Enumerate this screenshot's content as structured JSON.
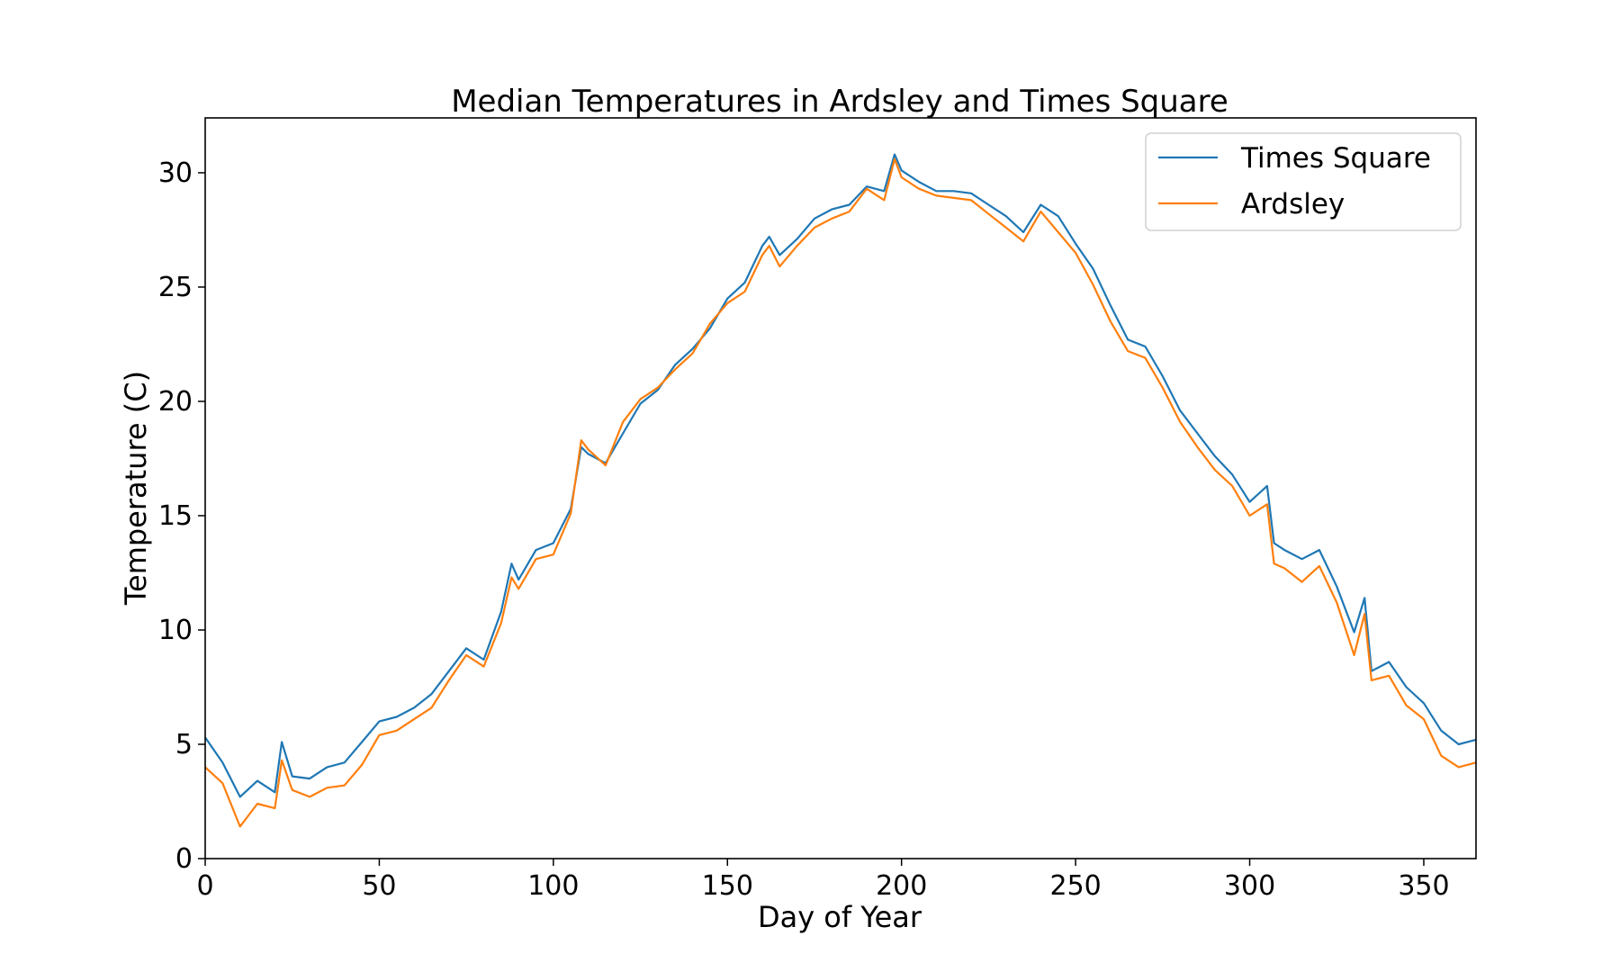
{
  "chart_data": {
    "type": "line",
    "title": "Median Temperatures in Ardsley and Times Square",
    "xlabel": "Day of Year",
    "ylabel": "Temperature (C)",
    "xlim": [
      0,
      365
    ],
    "ylim": [
      0,
      32.4
    ],
    "xticks": [
      0,
      50,
      100,
      150,
      200,
      250,
      300,
      350
    ],
    "yticks": [
      0,
      5,
      10,
      15,
      20,
      25,
      30
    ],
    "grid": false,
    "legend_position": "top-right",
    "series": [
      {
        "name": "Times Square",
        "color": "#1f77b4",
        "x": [
          0,
          5,
          10,
          15,
          20,
          22,
          25,
          30,
          35,
          40,
          45,
          50,
          55,
          60,
          65,
          70,
          75,
          80,
          85,
          88,
          90,
          95,
          100,
          105,
          108,
          110,
          115,
          120,
          125,
          130,
          135,
          140,
          145,
          150,
          155,
          160,
          162,
          165,
          170,
          175,
          180,
          185,
          190,
          195,
          198,
          200,
          205,
          210,
          215,
          220,
          225,
          230,
          235,
          240,
          245,
          250,
          255,
          260,
          265,
          270,
          275,
          280,
          285,
          290,
          295,
          300,
          305,
          307,
          310,
          315,
          320,
          325,
          330,
          333,
          335,
          340,
          345,
          350,
          355,
          360,
          365
        ],
        "y": [
          5.3,
          4.2,
          2.7,
          3.4,
          2.9,
          5.1,
          3.6,
          3.5,
          4.0,
          4.2,
          5.1,
          6.0,
          6.2,
          6.6,
          7.2,
          8.2,
          9.2,
          8.7,
          10.8,
          12.9,
          12.2,
          13.5,
          13.8,
          15.3,
          18.0,
          17.7,
          17.3,
          18.6,
          19.9,
          20.5,
          21.6,
          22.3,
          23.2,
          24.5,
          25.2,
          26.8,
          27.2,
          26.4,
          27.1,
          28.0,
          28.4,
          28.6,
          29.4,
          29.2,
          30.8,
          30.1,
          29.6,
          29.2,
          29.2,
          29.1,
          28.6,
          28.1,
          27.4,
          28.6,
          28.1,
          26.9,
          25.8,
          24.2,
          22.7,
          22.4,
          21.1,
          19.6,
          18.6,
          17.6,
          16.8,
          15.6,
          16.3,
          13.8,
          13.5,
          13.1,
          13.5,
          11.9,
          9.9,
          11.4,
          8.2,
          8.6,
          7.5,
          6.8,
          5.6,
          5.0,
          5.2
        ]
      },
      {
        "name": "Ardsley",
        "color": "#ff7f0e",
        "x": [
          0,
          5,
          10,
          15,
          20,
          22,
          25,
          30,
          35,
          40,
          45,
          50,
          55,
          60,
          65,
          70,
          75,
          80,
          85,
          88,
          90,
          95,
          100,
          105,
          108,
          110,
          115,
          120,
          125,
          130,
          135,
          140,
          145,
          150,
          155,
          160,
          162,
          165,
          170,
          175,
          180,
          185,
          190,
          195,
          198,
          200,
          205,
          210,
          215,
          220,
          225,
          230,
          235,
          240,
          245,
          250,
          255,
          260,
          265,
          270,
          275,
          280,
          285,
          290,
          295,
          300,
          305,
          307,
          310,
          315,
          320,
          325,
          330,
          333,
          335,
          340,
          345,
          350,
          355,
          360,
          365
        ],
        "y": [
          4.0,
          3.3,
          1.4,
          2.4,
          2.2,
          4.3,
          3.0,
          2.7,
          3.1,
          3.2,
          4.1,
          5.4,
          5.6,
          6.1,
          6.6,
          7.8,
          8.9,
          8.4,
          10.3,
          12.3,
          11.8,
          13.1,
          13.3,
          15.1,
          18.3,
          17.9,
          17.2,
          19.1,
          20.1,
          20.6,
          21.4,
          22.1,
          23.4,
          24.3,
          24.8,
          26.4,
          26.8,
          25.9,
          26.8,
          27.6,
          28.0,
          28.3,
          29.3,
          28.8,
          30.6,
          29.8,
          29.3,
          29.0,
          28.9,
          28.8,
          28.2,
          27.6,
          27.0,
          28.3,
          27.4,
          26.5,
          25.1,
          23.5,
          22.2,
          21.9,
          20.6,
          19.1,
          18.0,
          17.0,
          16.3,
          15.0,
          15.5,
          12.9,
          12.7,
          12.1,
          12.8,
          11.2,
          8.9,
          10.7,
          7.8,
          8.0,
          6.7,
          6.1,
          4.5,
          4.0,
          4.2
        ]
      }
    ]
  }
}
